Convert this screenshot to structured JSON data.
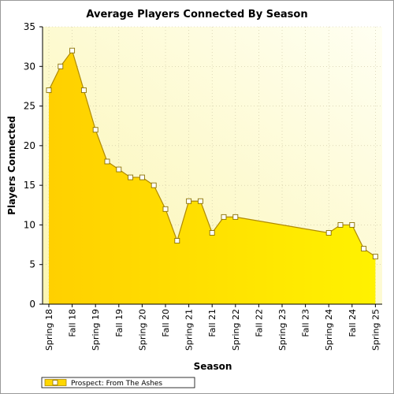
{
  "chart_data": {
    "type": "area",
    "title": "Average Players Connected By Season",
    "xlabel": "Season",
    "ylabel": "Players Connected",
    "ylim": [
      0,
      35
    ],
    "yticks": [
      0,
      5,
      10,
      15,
      20,
      25,
      30,
      35
    ],
    "x_tick_labels": [
      "Spring 18",
      "Fall 18",
      "Spring 19",
      "Fall 19",
      "Spring 20",
      "Fall 20",
      "Spring 21",
      "Fall 21",
      "Spring 22",
      "Fall 22",
      "Spring 23",
      "Fall 23",
      "Spring 24",
      "Fall 24",
      "Spring 25"
    ],
    "grid": true,
    "legend_position": "bottom-left",
    "series": [
      {
        "name": "Prospect: From The Ashes",
        "color": "#ffd700",
        "points": [
          {
            "x": 0.0,
            "y": 27
          },
          {
            "x": 0.5,
            "y": 30
          },
          {
            "x": 1.0,
            "y": 32
          },
          {
            "x": 1.5,
            "y": 27
          },
          {
            "x": 2.0,
            "y": 22
          },
          {
            "x": 2.5,
            "y": 18
          },
          {
            "x": 3.0,
            "y": 17
          },
          {
            "x": 3.5,
            "y": 16
          },
          {
            "x": 4.0,
            "y": 16
          },
          {
            "x": 4.5,
            "y": 15
          },
          {
            "x": 5.0,
            "y": 12
          },
          {
            "x": 5.5,
            "y": 8
          },
          {
            "x": 6.0,
            "y": 13
          },
          {
            "x": 6.5,
            "y": 13
          },
          {
            "x": 7.0,
            "y": 9
          },
          {
            "x": 7.5,
            "y": 11
          },
          {
            "x": 8.0,
            "y": 11
          },
          {
            "x": 12.0,
            "y": 9
          },
          {
            "x": 12.5,
            "y": 10
          },
          {
            "x": 13.0,
            "y": 10
          },
          {
            "x": 13.5,
            "y": 7
          },
          {
            "x": 14.0,
            "y": 6
          }
        ]
      }
    ]
  }
}
